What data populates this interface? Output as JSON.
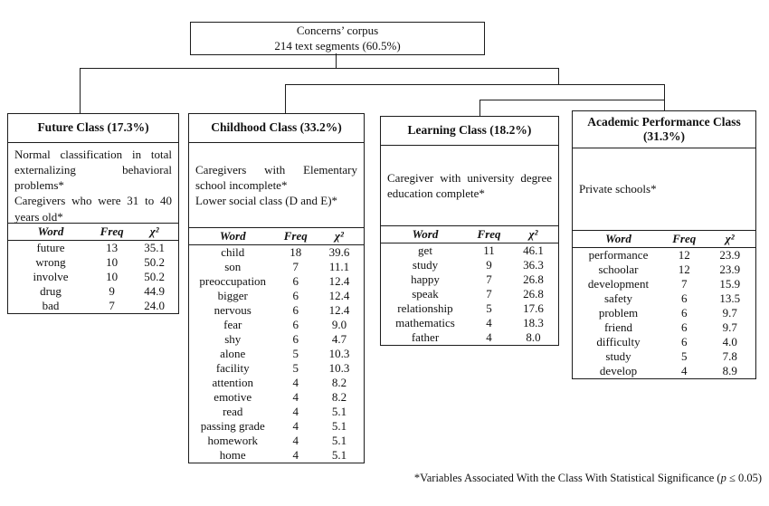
{
  "root": {
    "title": "Concerns’ corpus",
    "subtitle": "214 text segments (60.5%)"
  },
  "classes": [
    {
      "title": "Future Class (17.3%)",
      "description": [
        "Normal classification in total externalizing behavioral problems*",
        "Caregivers who were 31 to 40 years old*"
      ],
      "table": {
        "headers": [
          "Word",
          "Freq",
          "χ²"
        ],
        "rows": [
          [
            "future",
            "13",
            "35.1"
          ],
          [
            "wrong",
            "10",
            "50.2"
          ],
          [
            "involve",
            "10",
            "50.2"
          ],
          [
            "drug",
            "9",
            "44.9"
          ],
          [
            "bad",
            "7",
            "24.0"
          ]
        ]
      }
    },
    {
      "title": "Childhood Class (33.2%)",
      "description": [
        "Caregivers with Elementary school incomplete*",
        "Lower social class (D and E)*"
      ],
      "table": {
        "headers": [
          "Word",
          "Freq",
          "χ²"
        ],
        "rows": [
          [
            "child",
            "18",
            "39.6"
          ],
          [
            "son",
            "7",
            "11.1"
          ],
          [
            "preoccupation",
            "6",
            "12.4"
          ],
          [
            "bigger",
            "6",
            "12.4"
          ],
          [
            "nervous",
            "6",
            "12.4"
          ],
          [
            "fear",
            "6",
            "9.0"
          ],
          [
            "shy",
            "6",
            "4.7"
          ],
          [
            "alone",
            "5",
            "10.3"
          ],
          [
            "facility",
            "5",
            "10.3"
          ],
          [
            "attention",
            "4",
            "8.2"
          ],
          [
            "emotive",
            "4",
            "8.2"
          ],
          [
            "read",
            "4",
            "5.1"
          ],
          [
            "passing grade",
            "4",
            "5.1"
          ],
          [
            "homework",
            "4",
            "5.1"
          ],
          [
            "home",
            "4",
            "5.1"
          ]
        ]
      }
    },
    {
      "title": "Learning Class (18.2%)",
      "description": [
        "Caregiver with university degree education complete*"
      ],
      "table": {
        "headers": [
          "Word",
          "Freq",
          "χ²"
        ],
        "rows": [
          [
            "get",
            "11",
            "46.1"
          ],
          [
            "study",
            "9",
            "36.3"
          ],
          [
            "happy",
            "7",
            "26.8"
          ],
          [
            "speak",
            "7",
            "26.8"
          ],
          [
            "relationship",
            "5",
            "17.6"
          ],
          [
            "mathematics",
            "4",
            "18.3"
          ],
          [
            "father",
            "4",
            "8.0"
          ]
        ]
      }
    },
    {
      "title": "Academic Performance Class (31.3%)",
      "description": [
        "Private schools*"
      ],
      "table": {
        "headers": [
          "Word",
          "Freq",
          "χ²"
        ],
        "rows": [
          [
            "performance",
            "12",
            "23.9"
          ],
          [
            "schoolar",
            "12",
            "23.9"
          ],
          [
            "development",
            "7",
            "15.9"
          ],
          [
            "safety",
            "6",
            "13.5"
          ],
          [
            "problem",
            "6",
            "9.7"
          ],
          [
            "friend",
            "6",
            "9.7"
          ],
          [
            "difficulty",
            "6",
            "4.0"
          ],
          [
            "study",
            "5",
            "7.8"
          ],
          [
            "develop",
            "4",
            "8.9"
          ]
        ]
      }
    }
  ],
  "footnote": {
    "text": "*Variables Associated With the Class With Statistical Significance (",
    "p": "p",
    "rest": " ≤ 0.05)"
  }
}
